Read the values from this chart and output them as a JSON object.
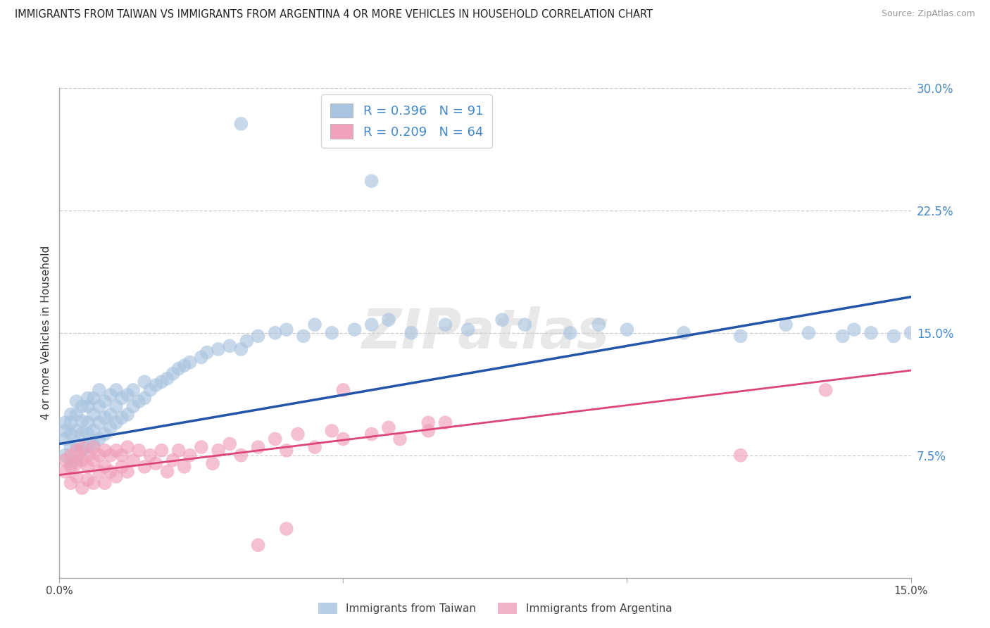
{
  "title": "IMMIGRANTS FROM TAIWAN VS IMMIGRANTS FROM ARGENTINA 4 OR MORE VEHICLES IN HOUSEHOLD CORRELATION CHART",
  "source": "Source: ZipAtlas.com",
  "ylabel": "4 or more Vehicles in Household",
  "x_min": 0.0,
  "x_max": 0.15,
  "y_min": 0.0,
  "y_max": 0.3,
  "taiwan_R": 0.396,
  "taiwan_N": 91,
  "argentina_R": 0.209,
  "argentina_N": 64,
  "taiwan_color": "#a8c4e0",
  "argentina_color": "#f0a0b8",
  "taiwan_line_color": "#2255aa",
  "argentina_line_color": "#dd4477",
  "watermark": "ZIPatlas",
  "tw_line_x0": 0.0,
  "tw_line_y0": 0.082,
  "tw_line_x1": 0.15,
  "tw_line_y1": 0.172,
  "ar_line_x0": 0.0,
  "ar_line_y0": 0.063,
  "ar_line_x1": 0.15,
  "ar_line_y1": 0.127,
  "taiwan_x": [
    0.001,
    0.001,
    0.001,
    0.001,
    0.002,
    0.002,
    0.002,
    0.002,
    0.002,
    0.003,
    0.003,
    0.003,
    0.003,
    0.003,
    0.004,
    0.004,
    0.004,
    0.004,
    0.005,
    0.005,
    0.005,
    0.005,
    0.005,
    0.006,
    0.006,
    0.006,
    0.006,
    0.007,
    0.007,
    0.007,
    0.007,
    0.008,
    0.008,
    0.008,
    0.009,
    0.009,
    0.009,
    0.01,
    0.01,
    0.01,
    0.011,
    0.011,
    0.012,
    0.012,
    0.013,
    0.013,
    0.014,
    0.015,
    0.015,
    0.016,
    0.017,
    0.018,
    0.019,
    0.02,
    0.021,
    0.022,
    0.023,
    0.025,
    0.026,
    0.028,
    0.03,
    0.032,
    0.033,
    0.035,
    0.038,
    0.04,
    0.043,
    0.045,
    0.048,
    0.052,
    0.055,
    0.058,
    0.062,
    0.068,
    0.072,
    0.078,
    0.082,
    0.09,
    0.095,
    0.1,
    0.032,
    0.055,
    0.11,
    0.12,
    0.128,
    0.132,
    0.138,
    0.14,
    0.143,
    0.147,
    0.15
  ],
  "taiwan_y": [
    0.075,
    0.085,
    0.09,
    0.095,
    0.07,
    0.08,
    0.088,
    0.095,
    0.1,
    0.072,
    0.082,
    0.09,
    0.1,
    0.108,
    0.078,
    0.088,
    0.096,
    0.105,
    0.08,
    0.088,
    0.095,
    0.105,
    0.11,
    0.082,
    0.09,
    0.1,
    0.11,
    0.085,
    0.095,
    0.105,
    0.115,
    0.088,
    0.098,
    0.108,
    0.092,
    0.1,
    0.112,
    0.095,
    0.105,
    0.115,
    0.098,
    0.11,
    0.1,
    0.112,
    0.105,
    0.115,
    0.108,
    0.11,
    0.12,
    0.115,
    0.118,
    0.12,
    0.122,
    0.125,
    0.128,
    0.13,
    0.132,
    0.135,
    0.138,
    0.14,
    0.142,
    0.14,
    0.145,
    0.148,
    0.15,
    0.152,
    0.148,
    0.155,
    0.15,
    0.152,
    0.155,
    0.158,
    0.15,
    0.155,
    0.152,
    0.158,
    0.155,
    0.15,
    0.155,
    0.152,
    0.278,
    0.243,
    0.15,
    0.148,
    0.155,
    0.15,
    0.148,
    0.152,
    0.15,
    0.148,
    0.15
  ],
  "argentina_x": [
    0.001,
    0.001,
    0.002,
    0.002,
    0.002,
    0.003,
    0.003,
    0.003,
    0.004,
    0.004,
    0.004,
    0.005,
    0.005,
    0.005,
    0.006,
    0.006,
    0.006,
    0.007,
    0.007,
    0.008,
    0.008,
    0.008,
    0.009,
    0.009,
    0.01,
    0.01,
    0.011,
    0.011,
    0.012,
    0.012,
    0.013,
    0.014,
    0.015,
    0.016,
    0.017,
    0.018,
    0.019,
    0.02,
    0.021,
    0.022,
    0.023,
    0.025,
    0.027,
    0.028,
    0.03,
    0.032,
    0.035,
    0.038,
    0.04,
    0.042,
    0.045,
    0.048,
    0.05,
    0.055,
    0.058,
    0.06,
    0.065,
    0.068,
    0.05,
    0.065,
    0.12,
    0.135,
    0.04,
    0.035
  ],
  "argentina_y": [
    0.072,
    0.065,
    0.068,
    0.075,
    0.058,
    0.07,
    0.078,
    0.062,
    0.072,
    0.08,
    0.055,
    0.068,
    0.075,
    0.06,
    0.072,
    0.08,
    0.058,
    0.075,
    0.065,
    0.078,
    0.068,
    0.058,
    0.075,
    0.065,
    0.078,
    0.062,
    0.075,
    0.068,
    0.08,
    0.065,
    0.072,
    0.078,
    0.068,
    0.075,
    0.07,
    0.078,
    0.065,
    0.072,
    0.078,
    0.068,
    0.075,
    0.08,
    0.07,
    0.078,
    0.082,
    0.075,
    0.08,
    0.085,
    0.078,
    0.088,
    0.08,
    0.09,
    0.085,
    0.088,
    0.092,
    0.085,
    0.09,
    0.095,
    0.115,
    0.095,
    0.075,
    0.115,
    0.03,
    0.02
  ]
}
